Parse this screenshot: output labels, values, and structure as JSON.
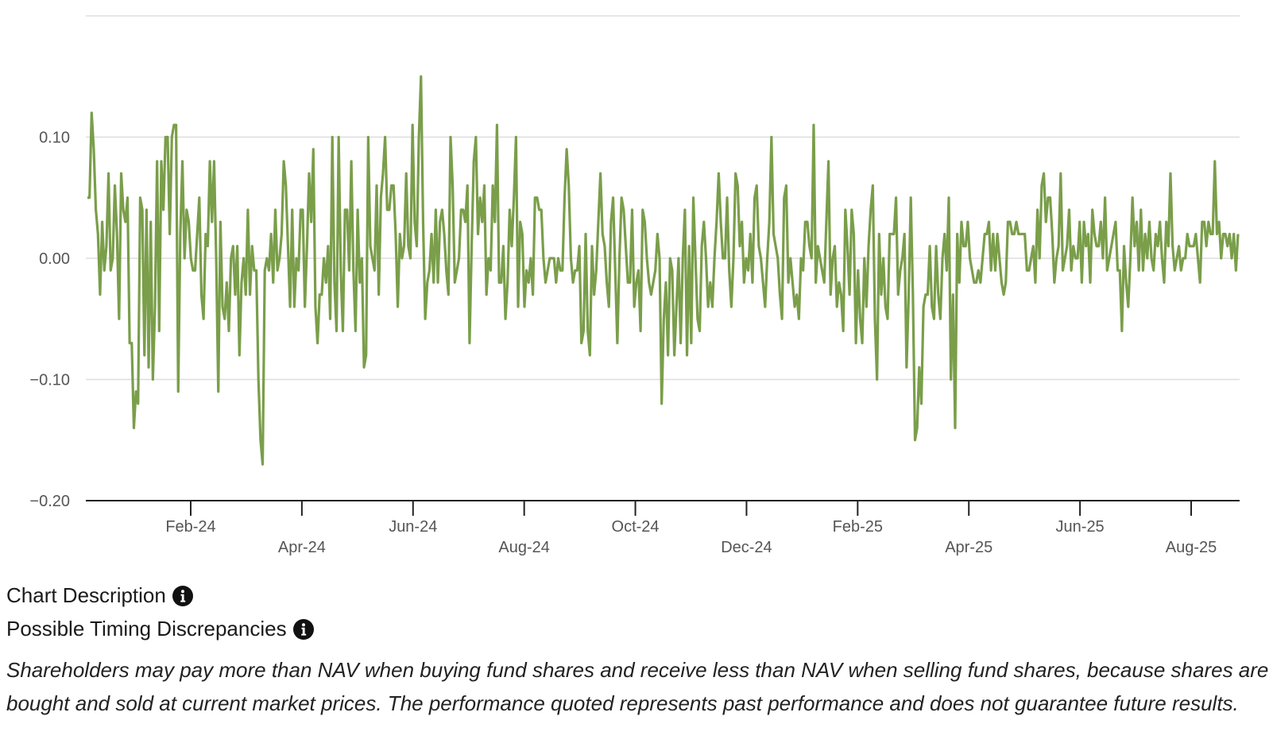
{
  "chart_data": {
    "type": "line",
    "series": [
      {
        "color": "#7a9e4a",
        "values": [
          0.05,
          0.05,
          0.12,
          0.09,
          0.04,
          0.02,
          -0.03,
          0.03,
          -0.01,
          0.01,
          0.07,
          -0.01,
          0.0,
          0.06,
          0.02,
          -0.05,
          0.07,
          0.04,
          0.03,
          0.05,
          -0.07,
          -0.07,
          -0.14,
          -0.11,
          -0.12,
          0.05,
          0.04,
          -0.08,
          0.04,
          -0.09,
          0.03,
          -0.1,
          -0.04,
          0.08,
          -0.06,
          0.08,
          0.04,
          0.1,
          0.1,
          0.02,
          0.1,
          0.11,
          0.11,
          -0.11,
          0.02,
          0.08,
          0.0,
          0.04,
          0.03,
          0.0,
          -0.01,
          -0.01,
          0.02,
          0.05,
          -0.03,
          -0.05,
          0.02,
          0.01,
          0.08,
          0.03,
          0.08,
          0.0,
          -0.11,
          0.03,
          -0.04,
          -0.05,
          -0.02,
          -0.06,
          0.0,
          0.01,
          -0.03,
          0.01,
          -0.08,
          -0.02,
          0.0,
          -0.03,
          0.04,
          -0.03,
          0.01,
          -0.01,
          -0.01,
          -0.1,
          -0.15,
          -0.17,
          -0.01,
          0.0,
          -0.01,
          0.02,
          -0.02,
          0.04,
          -0.01,
          0.0,
          0.02,
          0.08,
          0.06,
          0.01,
          -0.04,
          0.04,
          -0.04,
          0.0,
          -0.01,
          0.04,
          0.04,
          -0.04,
          0.01,
          0.07,
          0.03,
          0.09,
          -0.04,
          -0.07,
          -0.03,
          -0.03,
          0.0,
          -0.02,
          0.01,
          -0.05,
          0.1,
          -0.02,
          -0.06,
          0.1,
          -0.01,
          -0.06,
          0.04,
          0.04,
          -0.01,
          0.08,
          -0.01,
          -0.06,
          0.04,
          -0.02,
          0.0,
          -0.09,
          -0.08,
          0.1,
          0.01,
          0.0,
          -0.01,
          0.06,
          -0.03,
          0.05,
          0.07,
          0.1,
          0.04,
          0.04,
          0.06,
          0.06,
          0.02,
          -0.04,
          0.02,
          0.0,
          0.01,
          0.07,
          0.01,
          0.0,
          0.11,
          0.03,
          0.01,
          0.1,
          0.15,
          0.03,
          -0.05,
          -0.02,
          -0.01,
          0.02,
          -0.02,
          0.04,
          -0.02,
          0.03,
          0.04,
          0.02,
          -0.01,
          -0.03,
          0.1,
          0.06,
          -0.02,
          -0.01,
          0.0,
          0.04,
          0.04,
          0.03,
          0.06,
          -0.07,
          0.01,
          0.08,
          0.1,
          0.02,
          0.05,
          0.03,
          0.06,
          -0.03,
          0.0,
          -0.01,
          0.06,
          0.03,
          0.11,
          -0.02,
          -0.02,
          0.01,
          -0.05,
          -0.02,
          0.04,
          0.01,
          0.05,
          0.1,
          -0.04,
          0.03,
          0.02,
          -0.04,
          -0.01,
          -0.02,
          0.0,
          -0.03,
          0.05,
          0.05,
          0.04,
          0.04,
          0.0,
          -0.02,
          -0.01,
          0.0,
          0.0,
          0.0,
          -0.02,
          0.0,
          -0.01,
          -0.01,
          0.05,
          0.09,
          0.06,
          0.0,
          -0.02,
          -0.01,
          -0.01,
          0.01,
          -0.07,
          -0.06,
          0.02,
          -0.06,
          -0.08,
          0.01,
          -0.03,
          -0.01,
          0.03,
          0.07,
          0.02,
          0.01,
          -0.02,
          -0.04,
          0.03,
          0.05,
          -0.01,
          -0.07,
          0.0,
          0.05,
          0.04,
          0.01,
          -0.02,
          -0.02,
          0.04,
          -0.04,
          -0.02,
          -0.01,
          -0.06,
          0.04,
          0.03,
          0.0,
          -0.02,
          -0.03,
          -0.02,
          -0.01,
          0.02,
          0.0,
          -0.12,
          -0.05,
          -0.02,
          -0.08,
          0.0,
          -0.01,
          -0.08,
          -0.04,
          0.0,
          -0.07,
          0.0,
          0.04,
          -0.08,
          0.01,
          -0.07,
          0.05,
          0.0,
          -0.05,
          -0.06,
          0.01,
          0.03,
          0.0,
          -0.04,
          -0.02,
          -0.04,
          0.0,
          0.03,
          0.07,
          0.03,
          0.0,
          0.0,
          0.05,
          -0.01,
          -0.04,
          0.0,
          0.07,
          0.06,
          0.01,
          0.03,
          -0.02,
          0.0,
          -0.01,
          0.02,
          -0.02,
          0.05,
          0.06,
          0.01,
          0.0,
          -0.02,
          -0.04,
          0.0,
          0.03,
          0.1,
          0.02,
          0.01,
          0.0,
          -0.03,
          -0.05,
          0.05,
          0.06,
          -0.02,
          0.0,
          -0.02,
          -0.04,
          -0.03,
          -0.05,
          0.0,
          -0.01,
          0.03,
          0.03,
          0.01,
          0.0,
          0.11,
          -0.02,
          0.01,
          0.0,
          -0.01,
          -0.02,
          0.03,
          0.08,
          -0.03,
          0.0,
          0.01,
          -0.04,
          -0.02,
          -0.03,
          -0.06,
          0.04,
          0.01,
          -0.03,
          0.04,
          0.02,
          -0.07,
          -0.01,
          -0.05,
          -0.07,
          0.0,
          -0.04,
          0.01,
          0.04,
          0.06,
          -0.05,
          -0.1,
          0.02,
          -0.03,
          0.0,
          -0.04,
          -0.05,
          0.02,
          0.02,
          0.02,
          0.05,
          -0.03,
          -0.01,
          0.0,
          0.02,
          -0.09,
          -0.03,
          0.05,
          -0.03,
          -0.15,
          -0.14,
          -0.09,
          -0.12,
          -0.04,
          -0.03,
          -0.03,
          0.01,
          -0.04,
          -0.05,
          0.01,
          -0.03,
          -0.05,
          0.0,
          0.02,
          -0.01,
          0.05,
          -0.1,
          -0.03,
          -0.14,
          0.02,
          -0.02,
          0.03,
          0.01,
          0.01,
          0.03,
          0.0,
          -0.01,
          -0.02,
          -0.02,
          -0.01,
          -0.02,
          0.0,
          0.02,
          0.02,
          0.03,
          -0.01,
          0.02,
          -0.01,
          0.02,
          0.0,
          -0.02,
          -0.03,
          -0.02,
          0.03,
          0.03,
          0.02,
          0.02,
          0.03,
          0.02,
          0.02,
          0.02,
          0.02,
          -0.01,
          -0.01,
          0.0,
          0.01,
          -0.02,
          0.04,
          0.0,
          0.06,
          0.07,
          0.03,
          0.05,
          0.05,
          0.02,
          -0.02,
          0.0,
          0.01,
          0.07,
          -0.01,
          0.0,
          0.01,
          0.04,
          -0.01,
          0.01,
          0.0,
          0.0,
          0.03,
          -0.02,
          0.03,
          0.01,
          0.02,
          -0.02,
          0.04,
          0.02,
          0.01,
          0.01,
          0.03,
          0.0,
          0.05,
          -0.01,
          0.0,
          0.01,
          0.02,
          0.03,
          -0.01,
          -0.01,
          -0.06,
          0.01,
          -0.02,
          -0.04,
          0.0,
          0.05,
          0.01,
          0.03,
          -0.01,
          0.04,
          -0.01,
          0.02,
          0.0,
          0.03,
          0.0,
          -0.01,
          0.02,
          0.01,
          0.03,
          0.0,
          -0.02,
          0.03,
          0.01,
          0.07,
          0.01,
          -0.01,
          0.0,
          0.01,
          -0.01,
          0.0,
          0.0,
          0.02,
          0.01,
          0.01,
          0.01,
          0.02,
          0.0,
          -0.02,
          0.03,
          0.03,
          0.01,
          0.03,
          0.02,
          0.02,
          0.08,
          0.02,
          0.03,
          0.0,
          0.02,
          0.02,
          0.01,
          0.02,
          0.0,
          0.02,
          -0.01,
          0.02
        ]
      }
    ],
    "x_tick_labels": [
      "Feb-24",
      "Apr-24",
      "Jun-24",
      "Aug-24",
      "Oct-24",
      "Dec-24",
      "Feb-25",
      "Apr-25",
      "Jun-25",
      "Aug-25"
    ],
    "y_ticks": [
      0.1,
      0.0,
      -0.1,
      -0.2
    ],
    "y_tick_labels": [
      "0.10",
      "0.00",
      "−0.10",
      "−0.20"
    ],
    "ylim": [
      -0.2,
      0.2
    ],
    "grid": true,
    "legend": "none"
  },
  "chart_description": {
    "label": "Chart Description",
    "icon": "info-icon"
  },
  "timing": {
    "label": "Possible Timing Discrepancies",
    "icon": "info-icon"
  },
  "disclaimer": "Shareholders may pay more than NAV when buying fund shares and receive less than NAV when selling fund shares, because shares are bought and sold at current market prices. The performance quoted represents past performance and does not guarantee future results."
}
